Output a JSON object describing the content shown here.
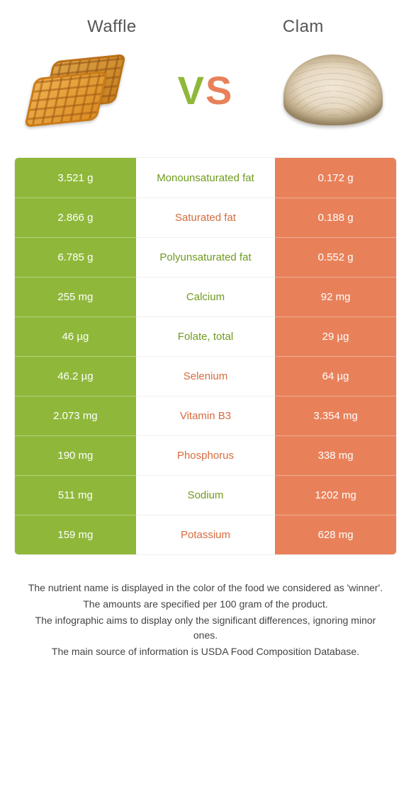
{
  "header": {
    "left_title": "Waffle",
    "right_title": "Clam",
    "vs_v": "V",
    "vs_s": "S"
  },
  "colors": {
    "left": "#8fb83a",
    "right": "#e8815a",
    "mid_green": "#6f9a1f",
    "mid_orange": "#d56b3d",
    "background": "#ffffff"
  },
  "rows": [
    {
      "left": "3.521 g",
      "label": "Monounsaturated fat",
      "right": "0.172 g",
      "winner": "left"
    },
    {
      "left": "2.866 g",
      "label": "Saturated fat",
      "right": "0.188 g",
      "winner": "right"
    },
    {
      "left": "6.785 g",
      "label": "Polyunsaturated fat",
      "right": "0.552 g",
      "winner": "left"
    },
    {
      "left": "255 mg",
      "label": "Calcium",
      "right": "92 mg",
      "winner": "left"
    },
    {
      "left": "46 µg",
      "label": "Folate, total",
      "right": "29 µg",
      "winner": "left"
    },
    {
      "left": "46.2 µg",
      "label": "Selenium",
      "right": "64 µg",
      "winner": "right"
    },
    {
      "left": "2.073 mg",
      "label": "Vitamin B3",
      "right": "3.354 mg",
      "winner": "right"
    },
    {
      "left": "190 mg",
      "label": "Phosphorus",
      "right": "338 mg",
      "winner": "right"
    },
    {
      "left": "511 mg",
      "label": "Sodium",
      "right": "1202 mg",
      "winner": "left"
    },
    {
      "left": "159 mg",
      "label": "Potassium",
      "right": "628 mg",
      "winner": "right"
    }
  ],
  "footnotes": [
    "The nutrient name is displayed in the color of the food we considered as 'winner'.",
    "The amounts are specified per 100 gram of the product.",
    "The infographic aims to display only the significant differences, ignoring minor ones.",
    "The main source of information is USDA Food Composition Database."
  ]
}
